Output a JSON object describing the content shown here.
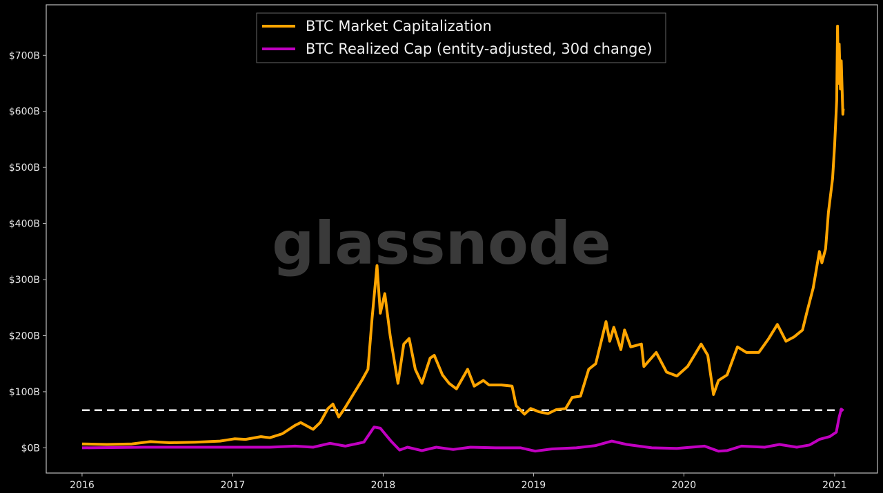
{
  "chart_data": {
    "type": "line",
    "title": "",
    "xlabel": "",
    "ylabel": "",
    "watermark": "glassnode",
    "x_ticks": [
      "2016",
      "2017",
      "2018",
      "2019",
      "2020",
      "2021"
    ],
    "y_ticks": [
      "$0B",
      "$100B",
      "$200B",
      "$300B",
      "$400B",
      "$500B",
      "$600B",
      "$700B"
    ],
    "y_tick_values": [
      0,
      100,
      200,
      300,
      400,
      500,
      600,
      700
    ],
    "ylim": [
      -45,
      790
    ],
    "xlim": [
      "2015-10-06",
      "2021-04-15"
    ],
    "grid": false,
    "legend_position": "top-center",
    "reference_line": {
      "value": 67,
      "style": "dashed",
      "color": "#ffffff"
    },
    "series": [
      {
        "name": "BTC Market Capitalization",
        "color": "#ffa500",
        "points": [
          [
            "2016-01-01",
            7
          ],
          [
            "2016-03-01",
            6
          ],
          [
            "2016-05-01",
            7
          ],
          [
            "2016-06-15",
            11
          ],
          [
            "2016-08-01",
            9
          ],
          [
            "2016-10-01",
            10
          ],
          [
            "2016-12-01",
            12
          ],
          [
            "2017-01-05",
            16
          ],
          [
            "2017-02-01",
            15
          ],
          [
            "2017-03-10",
            20
          ],
          [
            "2017-04-01",
            18
          ],
          [
            "2017-05-01",
            25
          ],
          [
            "2017-06-01",
            40
          ],
          [
            "2017-06-15",
            45
          ],
          [
            "2017-07-15",
            33
          ],
          [
            "2017-08-01",
            45
          ],
          [
            "2017-08-20",
            70
          ],
          [
            "2017-09-01",
            78
          ],
          [
            "2017-09-15",
            55
          ],
          [
            "2017-10-01",
            72
          ],
          [
            "2017-10-20",
            95
          ],
          [
            "2017-11-10",
            120
          ],
          [
            "2017-11-25",
            140
          ],
          [
            "2017-12-05",
            230
          ],
          [
            "2017-12-17",
            325
          ],
          [
            "2017-12-25",
            240
          ],
          [
            "2018-01-05",
            275
          ],
          [
            "2018-01-18",
            200
          ],
          [
            "2018-02-06",
            115
          ],
          [
            "2018-02-20",
            185
          ],
          [
            "2018-03-05",
            195
          ],
          [
            "2018-03-20",
            140
          ],
          [
            "2018-04-05",
            115
          ],
          [
            "2018-04-25",
            160
          ],
          [
            "2018-05-05",
            165
          ],
          [
            "2018-05-25",
            130
          ],
          [
            "2018-06-10",
            115
          ],
          [
            "2018-06-28",
            105
          ],
          [
            "2018-07-25",
            140
          ],
          [
            "2018-08-10",
            110
          ],
          [
            "2018-09-01",
            120
          ],
          [
            "2018-09-15",
            112
          ],
          [
            "2018-10-15",
            112
          ],
          [
            "2018-11-10",
            110
          ],
          [
            "2018-11-20",
            75
          ],
          [
            "2018-12-10",
            60
          ],
          [
            "2018-12-25",
            70
          ],
          [
            "2019-01-15",
            64
          ],
          [
            "2019-02-05",
            61
          ],
          [
            "2019-02-25",
            68
          ],
          [
            "2019-03-20",
            70
          ],
          [
            "2019-04-05",
            90
          ],
          [
            "2019-04-25",
            92
          ],
          [
            "2019-05-15",
            140
          ],
          [
            "2019-06-01",
            150
          ],
          [
            "2019-06-26",
            225
          ],
          [
            "2019-07-05",
            190
          ],
          [
            "2019-07-15",
            215
          ],
          [
            "2019-08-01",
            175
          ],
          [
            "2019-08-10",
            210
          ],
          [
            "2019-08-25",
            180
          ],
          [
            "2019-09-20",
            185
          ],
          [
            "2019-09-26",
            145
          ],
          [
            "2019-10-26",
            170
          ],
          [
            "2019-11-20",
            135
          ],
          [
            "2019-12-15",
            128
          ],
          [
            "2020-01-10",
            145
          ],
          [
            "2020-02-12",
            185
          ],
          [
            "2020-02-28",
            165
          ],
          [
            "2020-03-13",
            95
          ],
          [
            "2020-03-25",
            120
          ],
          [
            "2020-04-15",
            130
          ],
          [
            "2020-04-30",
            160
          ],
          [
            "2020-05-10",
            180
          ],
          [
            "2020-06-01",
            170
          ],
          [
            "2020-07-01",
            170
          ],
          [
            "2020-07-25",
            195
          ],
          [
            "2020-08-15",
            220
          ],
          [
            "2020-09-05",
            190
          ],
          [
            "2020-09-25",
            198
          ],
          [
            "2020-10-15",
            210
          ],
          [
            "2020-10-25",
            240
          ],
          [
            "2020-11-10",
            285
          ],
          [
            "2020-11-25",
            350
          ],
          [
            "2020-12-01",
            330
          ],
          [
            "2020-12-10",
            355
          ],
          [
            "2020-12-17",
            420
          ],
          [
            "2020-12-27",
            480
          ],
          [
            "2021-01-01",
            540
          ],
          [
            "2021-01-06",
            620
          ],
          [
            "2021-01-08",
            752
          ],
          [
            "2021-01-10",
            650
          ],
          [
            "2021-01-12",
            720
          ],
          [
            "2021-01-15",
            640
          ],
          [
            "2021-01-17",
            690
          ],
          [
            "2021-01-21",
            595
          ],
          [
            "2021-01-22",
            605
          ]
        ]
      },
      {
        "name": "BTC Realized Cap (entity-adjusted, 30d change)",
        "color": "#c000c0",
        "points": [
          [
            "2016-01-01",
            0
          ],
          [
            "2016-06-01",
            1
          ],
          [
            "2016-12-01",
            1
          ],
          [
            "2017-04-01",
            1
          ],
          [
            "2017-06-01",
            3
          ],
          [
            "2017-07-15",
            1
          ],
          [
            "2017-08-25",
            8
          ],
          [
            "2017-10-01",
            3
          ],
          [
            "2017-11-15",
            10
          ],
          [
            "2017-12-10",
            37
          ],
          [
            "2017-12-25",
            35
          ],
          [
            "2018-01-20",
            12
          ],
          [
            "2018-02-10",
            -4
          ],
          [
            "2018-03-01",
            1
          ],
          [
            "2018-04-05",
            -5
          ],
          [
            "2018-05-10",
            1
          ],
          [
            "2018-06-20",
            -3
          ],
          [
            "2018-08-01",
            1
          ],
          [
            "2018-10-01",
            0
          ],
          [
            "2018-12-01",
            0
          ],
          [
            "2019-01-05",
            -6
          ],
          [
            "2019-02-15",
            -2
          ],
          [
            "2019-04-15",
            0
          ],
          [
            "2019-06-01",
            4
          ],
          [
            "2019-07-10",
            12
          ],
          [
            "2019-08-15",
            6
          ],
          [
            "2019-10-15",
            0
          ],
          [
            "2019-12-15",
            -1
          ],
          [
            "2020-02-20",
            3
          ],
          [
            "2020-03-25",
            -6
          ],
          [
            "2020-04-15",
            -5
          ],
          [
            "2020-05-20",
            3
          ],
          [
            "2020-07-15",
            1
          ],
          [
            "2020-08-20",
            6
          ],
          [
            "2020-10-01",
            1
          ],
          [
            "2020-11-01",
            5
          ],
          [
            "2020-11-25",
            15
          ],
          [
            "2020-12-20",
            20
          ],
          [
            "2021-01-05",
            28
          ],
          [
            "2021-01-12",
            55
          ],
          [
            "2021-01-17",
            69
          ],
          [
            "2021-01-22",
            66
          ]
        ]
      }
    ]
  }
}
